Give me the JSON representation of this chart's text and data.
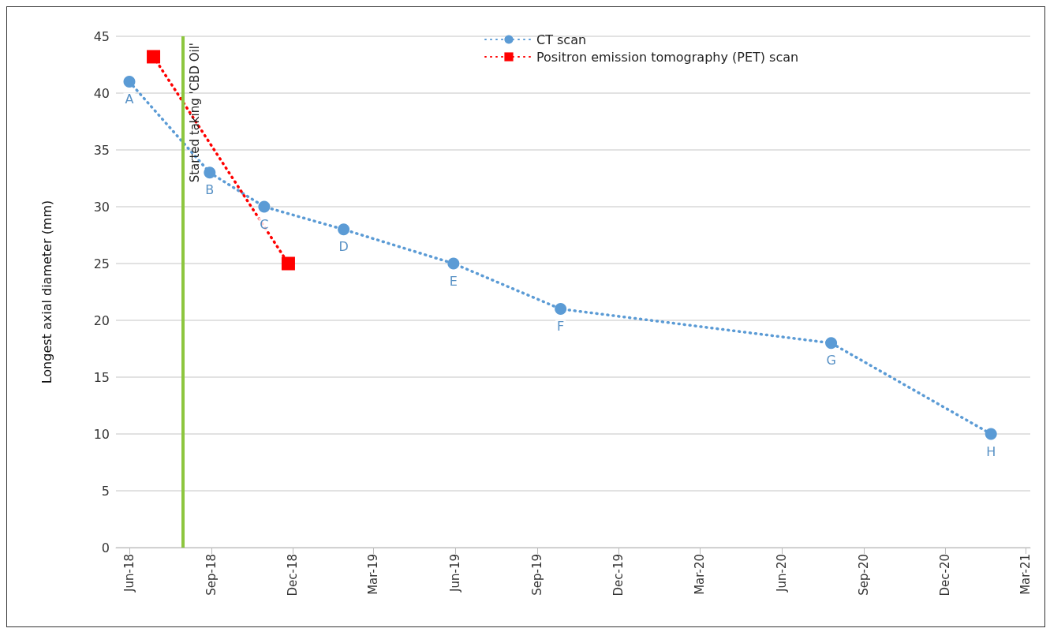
{
  "chart_data": {
    "type": "line",
    "ylabel": "Longest axial diameter (mm)",
    "xlim": [
      "2018-05-17",
      "2021-03-06"
    ],
    "xticks": [
      {
        "value": "2018-06-01",
        "label": "Jun-18"
      },
      {
        "value": "2018-09-01",
        "label": "Sep-18"
      },
      {
        "value": "2018-12-01",
        "label": "Dec-18"
      },
      {
        "value": "2019-03-01",
        "label": "Mar-19"
      },
      {
        "value": "2019-06-01",
        "label": "Jun-19"
      },
      {
        "value": "2019-09-01",
        "label": "Sep-19"
      },
      {
        "value": "2019-12-01",
        "label": "Dec-19"
      },
      {
        "value": "2020-03-01",
        "label": "Mar-20"
      },
      {
        "value": "2020-06-01",
        "label": "Jun-20"
      },
      {
        "value": "2020-09-01",
        "label": "Sep-20"
      },
      {
        "value": "2020-12-01",
        "label": "Dec-20"
      },
      {
        "value": "2021-03-01",
        "label": "Mar-21"
      }
    ],
    "ylim": [
      0,
      45
    ],
    "yticks": [
      0,
      5,
      10,
      15,
      20,
      25,
      30,
      35,
      40,
      45
    ],
    "grid": "y",
    "legend": "top",
    "line_style": "dotted",
    "series": [
      {
        "name": "CT scan",
        "color": "#5b9bd5",
        "marker": "circle",
        "x": [
          "2018-06-01",
          "2018-08-30",
          "2018-10-30",
          "2019-01-27",
          "2019-05-30",
          "2019-09-27",
          "2020-07-26",
          "2021-01-21"
        ],
        "values": [
          41,
          33,
          30,
          28,
          25,
          21,
          18,
          10
        ]
      },
      {
        "name": "Positron emission tomography (PET) scan",
        "color": "#ff0000",
        "marker": "square",
        "x": [
          "2018-06-28",
          "2018-11-26"
        ],
        "values": [
          43.2,
          25
        ]
      }
    ],
    "ref_lines": [
      {
        "axis": "x",
        "value": "2018-07-31",
        "label": "Started taking 'CBD Oil'",
        "color": "#8dc63f"
      }
    ],
    "annotations": [
      {
        "text": "A",
        "x": "2018-06-01",
        "y": 41
      },
      {
        "text": "B",
        "x": "2018-08-30",
        "y": 33
      },
      {
        "text": "C",
        "x": "2018-10-30",
        "y": 30
      },
      {
        "text": "D",
        "x": "2019-01-27",
        "y": 28
      },
      {
        "text": "E",
        "x": "2019-05-30",
        "y": 25
      },
      {
        "text": "F",
        "x": "2019-09-27",
        "y": 21
      },
      {
        "text": "G",
        "x": "2020-07-26",
        "y": 18
      },
      {
        "text": "H",
        "x": "2021-01-21",
        "y": 10
      }
    ]
  }
}
